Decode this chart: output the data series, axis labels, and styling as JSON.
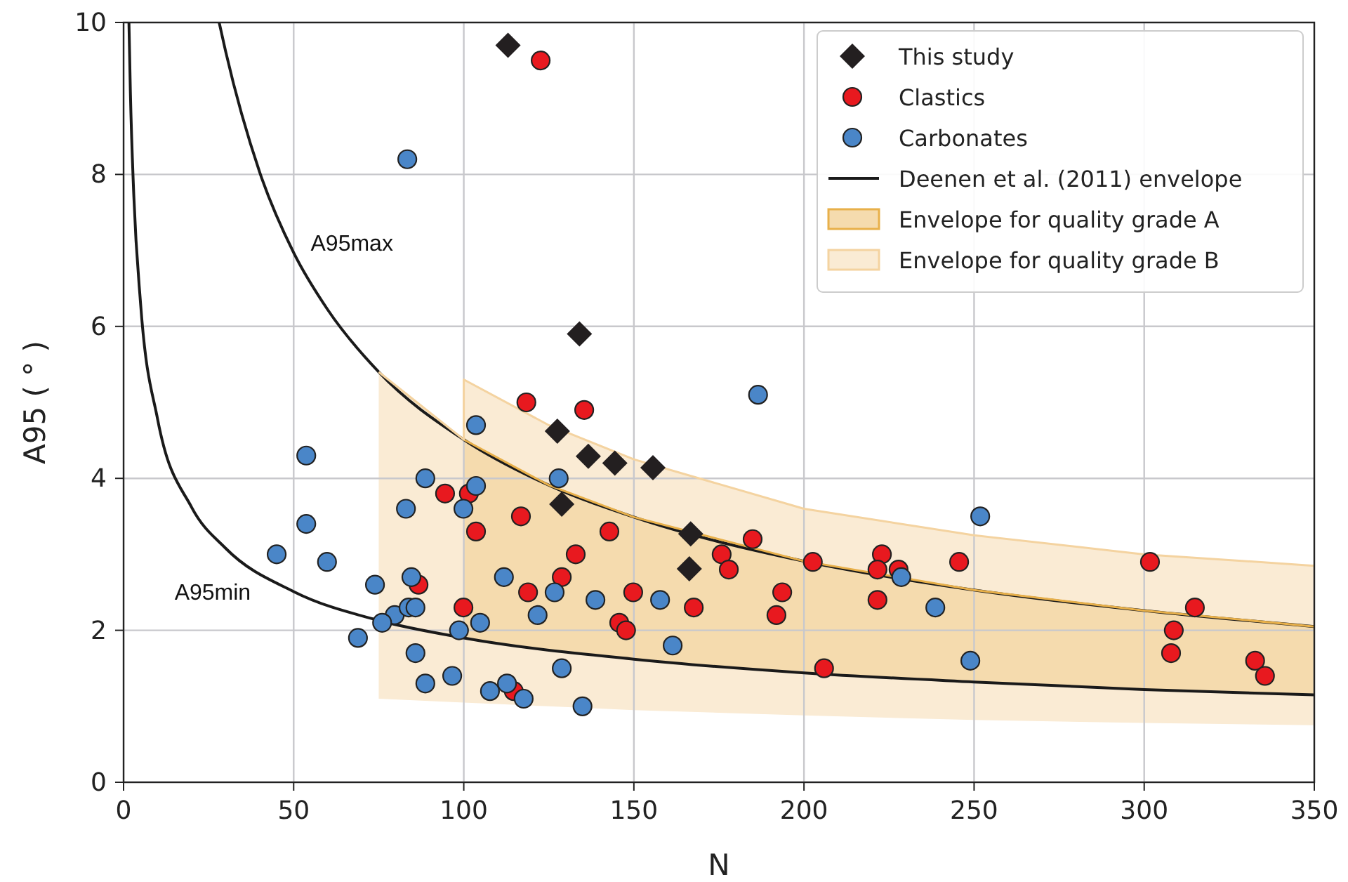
{
  "chart_data": {
    "type": "scatter",
    "xlabel": "N",
    "ylabel": "A95 ( ° )",
    "xlim": [
      0,
      350
    ],
    "ylim": [
      0,
      10
    ],
    "xticks": [
      0,
      50,
      100,
      150,
      200,
      250,
      300,
      350
    ],
    "yticks": [
      0,
      2,
      4,
      6,
      8,
      10
    ],
    "grid": true,
    "legend": "top right",
    "annotations": [
      "A95max",
      "A95min"
    ],
    "series": [
      {
        "name": "This study",
        "marker": "diamond",
        "color": "#231f20",
        "x": [
          113,
          134,
          127.5,
          136.6,
          144.4,
          155.6,
          128.8,
          166.7,
          166.3
        ],
        "values": [
          9.7,
          5.9,
          4.62,
          4.29,
          4.2,
          4.14,
          3.66,
          3.27,
          2.81
        ]
      },
      {
        "name": "Clastics",
        "marker": "circle",
        "color": "#e8191f",
        "x": [
          122.6,
          118.4,
          135.4,
          94.5,
          101.5,
          103.6,
          116.8,
          142.8,
          132.9,
          128.8,
          118.9,
          149.8,
          145.7,
          147.7,
          86.7,
          99.9,
          114.7,
          184.9,
          175.8,
          177.9,
          167.6,
          193.6,
          191.9,
          202.6,
          205.9,
          222.9,
          221.6,
          227.8,
          221.6,
          245.6,
          301.7,
          314.9,
          308.7,
          307.9,
          332.6,
          335.5
        ],
        "values": [
          9.5,
          5,
          4.9,
          3.8,
          3.8,
          3.3,
          3.5,
          3.3,
          3,
          2.7,
          2.5,
          2.5,
          2.1,
          2,
          2.6,
          2.3,
          1.2,
          3.2,
          3,
          2.8,
          2.3,
          2.5,
          2.2,
          2.9,
          1.5,
          3,
          2.8,
          2.8,
          2.4,
          2.9,
          2.9,
          2.3,
          2,
          1.7,
          1.6,
          1.4
        ]
      },
      {
        "name": "Carbonates",
        "marker": "circle",
        "color": "#4a86c8",
        "x": [
          83.4,
          186.5,
          251.8,
          53.7,
          103.6,
          88.7,
          127.9,
          103.6,
          83,
          99.9,
          53.7,
          45,
          59.8,
          73.9,
          84.6,
          111.8,
          126.7,
          138.7,
          157.7,
          121.7,
          79.7,
          76,
          83.8,
          85.8,
          104.8,
          98.6,
          68.9,
          85.8,
          128.8,
          88.7,
          96.6,
          107.7,
          112.7,
          117.6,
          134.9,
          161.4,
          228.6,
          238.6,
          248.9
        ],
        "values": [
          8.2,
          5.1,
          3.5,
          4.3,
          4.7,
          4,
          4,
          3.9,
          3.6,
          3.6,
          3.4,
          3,
          2.9,
          2.6,
          2.7,
          2.7,
          2.5,
          2.4,
          2.4,
          2.2,
          2.2,
          2.1,
          2.3,
          2.3,
          2.1,
          2,
          1.9,
          1.7,
          1.5,
          1.3,
          1.4,
          1.2,
          1.3,
          1.1,
          1,
          1.8,
          2.7,
          2.3,
          1.6
        ]
      },
      {
        "name": "Deenen et al. (2011) envelope",
        "type": "line",
        "color": "#1a1a1a",
        "x": [
          28.1,
          30,
          40,
          50,
          60,
          75,
          100,
          125,
          150,
          200,
          250,
          300,
          350
        ],
        "values": [
          10,
          9.62,
          8.03,
          6.97,
          6.22,
          5.4,
          4.51,
          3.91,
          3.49,
          2.91,
          2.53,
          2.26,
          2.05
        ]
      },
      {
        "type": "line",
        "color": "#1a1a1a",
        "x": [
          1.58,
          2,
          3,
          5,
          10,
          20,
          30,
          50,
          75,
          100,
          150,
          200,
          250,
          300,
          350
        ],
        "values": [
          10,
          9.09,
          7.73,
          6.3,
          4.78,
          3.62,
          3.08,
          2.51,
          2.13,
          1.9,
          1.62,
          1.44,
          1.32,
          1.22,
          1.15
        ]
      },
      {
        "name": "Envelope for quality grade A",
        "type": "line",
        "color": "#e8b04a",
        "x": [
          100,
          125,
          150,
          200,
          250,
          300,
          350
        ],
        "values": [
          4.51,
          3.91,
          3.49,
          2.91,
          2.53,
          2.26,
          2.05
        ],
        "upper": [
          4.51,
          3.91,
          3.49,
          2.91,
          2.53,
          2.26,
          2.05
        ],
        "lower": [
          1.9,
          1.75,
          1.62,
          1.44,
          1.32,
          1.22,
          1.15
        ]
      },
      {
        "name": "Envelope for quality grade B",
        "type": "line",
        "color": "#f4d3a0",
        "x": [
          75,
          100,
          100,
          125,
          150,
          200,
          250,
          300,
          350
        ],
        "values": [
          5.4,
          4.51,
          5.3,
          4.7,
          4.25,
          3.6,
          3.25,
          3.0,
          2.85
        ],
        "upper": [
          5.4,
          4.51,
          5.3,
          4.7,
          4.25,
          3.6,
          3.25,
          3.0,
          2.85
        ],
        "lower": [
          1.1,
          1.05,
          1.05,
          1,
          0.95,
          0.88,
          0.82,
          0.78,
          0.75
        ]
      }
    ]
  }
}
